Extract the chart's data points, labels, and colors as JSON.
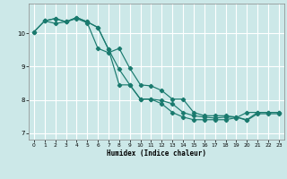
{
  "xlabel": "Humidex (Indice chaleur)",
  "bg_color": "#cce8e8",
  "grid_color": "#ffffff",
  "line_color": "#1a7a6e",
  "xlim": [
    -0.5,
    23.5
  ],
  "ylim": [
    6.8,
    10.9
  ],
  "yticks": [
    7,
    8,
    9,
    10
  ],
  "xticks": [
    0,
    1,
    2,
    3,
    4,
    5,
    6,
    7,
    8,
    9,
    10,
    11,
    12,
    13,
    14,
    15,
    16,
    17,
    18,
    19,
    20,
    21,
    22,
    23
  ],
  "line1_x": [
    0,
    1,
    2,
    3,
    4,
    5,
    6,
    7,
    8,
    9,
    10,
    11,
    12,
    13,
    14,
    15,
    16,
    17,
    18,
    19,
    20,
    21,
    22,
    23
  ],
  "line1_y": [
    10.05,
    10.38,
    10.3,
    10.35,
    10.45,
    10.32,
    9.55,
    9.42,
    9.55,
    8.95,
    8.45,
    8.42,
    8.28,
    8.02,
    8.02,
    7.62,
    7.52,
    7.52,
    7.52,
    7.48,
    7.4,
    7.62,
    7.62,
    7.62
  ],
  "line2_x": [
    0,
    1,
    2,
    3,
    4,
    5,
    6,
    7,
    8,
    9,
    10,
    11,
    12,
    13,
    14,
    15,
    16,
    17,
    18,
    19,
    20,
    21,
    22,
    23
  ],
  "line2_y": [
    10.05,
    10.38,
    10.45,
    10.35,
    10.48,
    10.35,
    10.18,
    9.52,
    8.92,
    8.45,
    8.02,
    8.02,
    7.88,
    7.62,
    7.48,
    7.4,
    7.4,
    7.4,
    7.4,
    7.46,
    7.62,
    7.62,
    7.62,
    7.62
  ],
  "line3_x": [
    1,
    2,
    3,
    4,
    5,
    6,
    7,
    8,
    9,
    10,
    11,
    12,
    13,
    14,
    15,
    16,
    17,
    18,
    19,
    20,
    21,
    22,
    23
  ],
  "line3_y": [
    10.38,
    10.45,
    10.35,
    10.48,
    10.35,
    10.18,
    9.52,
    8.45,
    8.45,
    8.02,
    8.02,
    7.98,
    7.88,
    7.62,
    7.52,
    7.48,
    7.45,
    7.48,
    7.48,
    7.38,
    7.58,
    7.58,
    7.58
  ]
}
